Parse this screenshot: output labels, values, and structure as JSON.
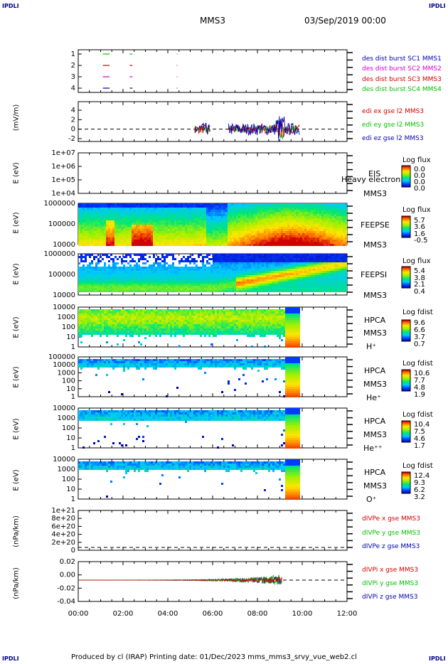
{
  "corners": {
    "tl": "IPDLI",
    "tr": "IPDLI",
    "bl": "IPDLI",
    "br": "IPDLI"
  },
  "header": {
    "mission": "MMS3",
    "datetime": "03/Sep/2019 00:00"
  },
  "footer": {
    "text": "Produced by cl (IRAP)   Printing date: 01/Dec/2023   mms_mms3_srvy_vue_web2.cl"
  },
  "colors": {
    "red": "#d00000",
    "green": "#00c000",
    "blue": "#0000b0",
    "magenta": "#d000d0"
  },
  "chart_data": [
    {
      "type": "line",
      "id": "p1",
      "ylabel": "",
      "yticks": [
        "1",
        "2",
        "3",
        "4"
      ],
      "legend": [
        {
          "text": "des dist burst SC1 MMS1",
          "color": "#0000b0"
        },
        {
          "text": "des dist burst SC2 MMS2",
          "color": "#d000d0"
        },
        {
          "text": "des dist burst SC3 MMS3",
          "color": "#d00000"
        },
        {
          "text": "des dist burst SC4 MMS4",
          "color": "#00c000"
        }
      ]
    },
    {
      "type": "line",
      "id": "p2",
      "ylabel": "(mV/m)",
      "yticks": [
        "4",
        "2",
        "0",
        "-2"
      ],
      "legend": [
        {
          "text": "edi ex gse l2 MMS3",
          "color": "#d00000"
        },
        {
          "text": "edi ey gse l2 MMS3",
          "color": "#00c000"
        },
        {
          "text": "edi ez gse l2 MMS3",
          "color": "#0000b0"
        }
      ]
    },
    {
      "type": "heatmap",
      "id": "p3",
      "ylabel": "E (eV)",
      "yticks": [
        "1e+07",
        "1e+06",
        "1e+05",
        "1e+04"
      ],
      "right": [
        "EIS",
        "Heavy electron to",
        "MMS3"
      ],
      "cbtitle": "Log flux",
      "cbvals": [
        "0.0",
        "0.0",
        "0.0",
        "0.0"
      ]
    },
    {
      "type": "heatmap",
      "id": "p4",
      "ylabel": "E (eV)",
      "yticks": [
        "1000000",
        "100000",
        "10000"
      ],
      "right": [
        "FEEPSE",
        "MMS3"
      ],
      "cbtitle": "Log flux",
      "cbvals": [
        "5.7",
        "3.6",
        "1.6",
        "-0.5"
      ]
    },
    {
      "type": "heatmap",
      "id": "p5",
      "ylabel": "E (eV)",
      "yticks": [
        "1000000",
        "100000",
        "10000"
      ],
      "right": [
        "FEEPSI",
        "MMS3"
      ],
      "cbtitle": "Log flux",
      "cbvals": [
        "5.4",
        "3.8",
        "2.1",
        "0.4"
      ]
    },
    {
      "type": "heatmap",
      "id": "p6",
      "ylabel": "E (eV)",
      "yticks": [
        "10000",
        "1000",
        "100",
        "10",
        "1"
      ],
      "right": [
        "HPCA",
        "MMS3",
        "H⁺"
      ],
      "cbtitle": "Log fdist",
      "cbvals": [
        "9.6",
        "6.6",
        "3.7",
        "0.7"
      ]
    },
    {
      "type": "heatmap",
      "id": "p7",
      "ylabel": "E (eV)",
      "yticks": [
        "100000",
        "10000",
        "1000",
        "100",
        "10",
        "1"
      ],
      "right": [
        "HPCA",
        "MMS3",
        "He⁺"
      ],
      "cbtitle": "Log fdist",
      "cbvals": [
        "10.6",
        "7.7",
        "4.8",
        "1.9"
      ]
    },
    {
      "type": "heatmap",
      "id": "p8",
      "ylabel": "E (eV)",
      "yticks": [
        "10000",
        "1000",
        "100",
        "10",
        "1"
      ],
      "right": [
        "HPCA",
        "MMS3",
        "He⁺⁺"
      ],
      "cbtitle": "Log fdist",
      "cbvals": [
        "10.4",
        "7.5",
        "4.6",
        "1.7"
      ]
    },
    {
      "type": "heatmap",
      "id": "p9",
      "ylabel": "E (eV)",
      "yticks": [
        "10000",
        "1000",
        "100",
        "10",
        "1"
      ],
      "right": [
        "HPCA",
        "MMS3",
        "O⁺"
      ],
      "cbtitle": "Log fdist",
      "cbvals": [
        "12.4",
        "9.3",
        "6.2",
        "3.2"
      ]
    },
    {
      "type": "line",
      "id": "p10",
      "ylabel": "(nPa/km)",
      "yticks": [
        "1e+21",
        "8e+20",
        "6e+20",
        "4e+20",
        "2e+20",
        "0"
      ],
      "legend": [
        {
          "text": "dIVPe x gse MMS3",
          "color": "#d00000"
        },
        {
          "text": "dIVPe y gse MMS3",
          "color": "#00c000"
        },
        {
          "text": "dIVPe z gse MMS3",
          "color": "#0000b0"
        }
      ]
    },
    {
      "type": "line",
      "id": "p11",
      "ylabel": "(nPa/km)",
      "yticks": [
        "0.02",
        "0.00",
        "-0.02",
        "-0.04"
      ],
      "legend": [
        {
          "text": "dIVPi x gse MMS3",
          "color": "#d00000"
        },
        {
          "text": "dIVPi y gse MMS3",
          "color": "#00c000"
        },
        {
          "text": "dIVPi z gse MMS3",
          "color": "#0000b0"
        }
      ]
    }
  ],
  "xaxis": {
    "ticks": [
      "00:00",
      "02:00",
      "04:00",
      "06:00",
      "08:00",
      "10:00",
      "12:00"
    ]
  }
}
